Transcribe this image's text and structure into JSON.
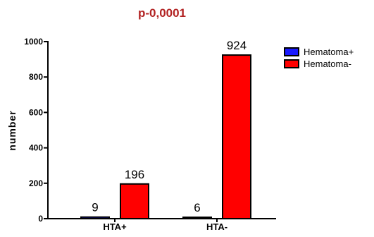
{
  "chart_data": {
    "type": "bar",
    "title": "p-0,0001",
    "title_color": "#b22222",
    "ylabel": "number",
    "xlabel": "",
    "categories": [
      "HTA+",
      "HTA-"
    ],
    "ylim": [
      0,
      1000
    ],
    "yticks": [
      0,
      200,
      400,
      600,
      800,
      1000
    ],
    "series": [
      {
        "name": "Hematoma+",
        "color": "#1a1aff",
        "values": [
          9,
          6
        ]
      },
      {
        "name": "Hematoma-",
        "color": "#ff0000",
        "values": [
          196,
          924
        ]
      }
    ],
    "legend_position": "top-right",
    "grid": false
  }
}
